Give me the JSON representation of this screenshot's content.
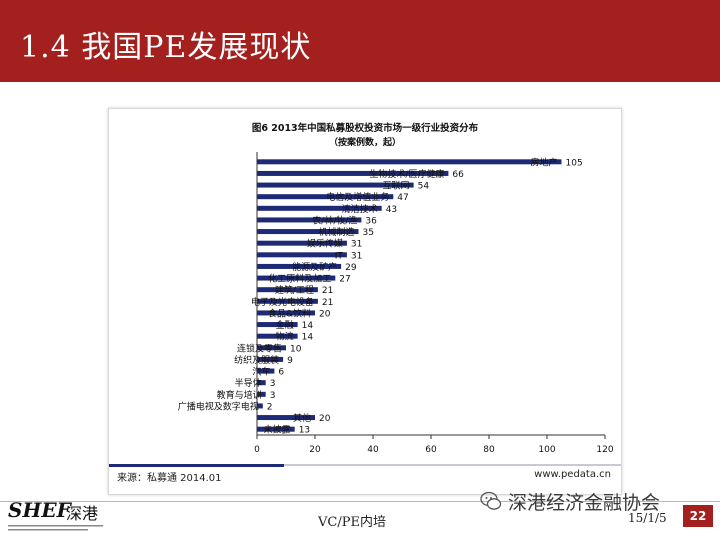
{
  "slide": {
    "title": "1.4 我国PE发展现状",
    "footer_center": "VC/PE内培",
    "footer_date": "15/1/5",
    "page_number": "22",
    "logo_mark": "SHEF",
    "logo_cn": "深港",
    "watermark": "深港经济金融协会",
    "colors": {
      "header": "#a3201f",
      "bars": "#1f2a77"
    }
  },
  "chart_data": {
    "type": "bar",
    "orientation": "horizontal",
    "title": "图6 2013年中国私募股权投资市场一级行业投资分布",
    "subtitle": "（按案例数，起）",
    "categories": [
      "房地产",
      "生物技术/医疗健康",
      "互联网",
      "电信及增值业务",
      "清洁技术",
      "农/林/牧/渔",
      "机械制造",
      "娱乐传媒",
      "IT",
      "能源及矿产",
      "化工原料及加工",
      "建筑/工程",
      "电子及光电设备",
      "食品&饮料",
      "金融",
      "物流",
      "连锁及零售",
      "纺织及服装",
      "汽车",
      "半导体",
      "教育与培训",
      "广播电视及数字电视",
      "其他",
      "未披露"
    ],
    "values": [
      105,
      66,
      54,
      47,
      43,
      36,
      35,
      31,
      31,
      29,
      27,
      21,
      21,
      20,
      14,
      14,
      10,
      9,
      6,
      3,
      3,
      2,
      20,
      13
    ],
    "xlim": [
      0,
      120
    ],
    "xticks": [
      0,
      20,
      40,
      60,
      80,
      100,
      120
    ],
    "grid": false,
    "source_left": "来源：私募通  2014.01",
    "source_right": "www.pedata.cn"
  }
}
